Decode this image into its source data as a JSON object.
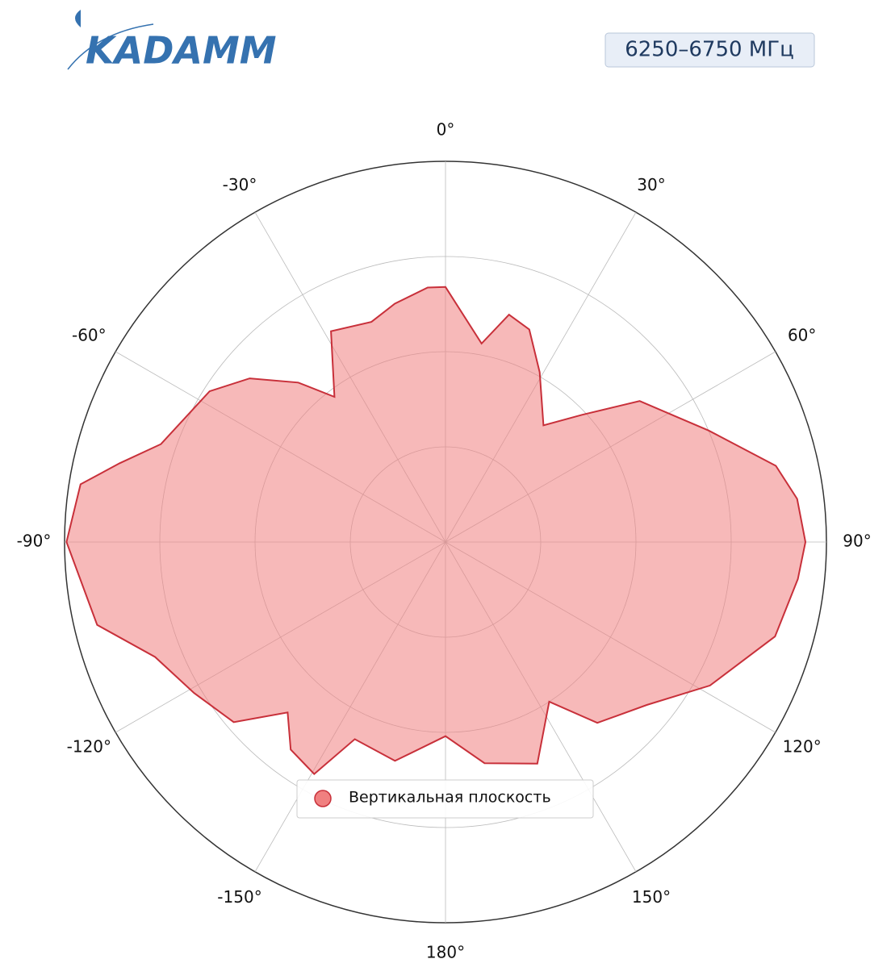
{
  "header": {
    "logo": "KADAMM"
  },
  "chart_data": {
    "type": "polar-area",
    "title": "6250–6750 МГц",
    "x": [
      0,
      10.3,
      15.6,
      21.5,
      29,
      40,
      47,
      54,
      67,
      77,
      83,
      90,
      96,
      106,
      118.5,
      129,
      140,
      147,
      157.5,
      170,
      180,
      193,
      204.7,
      209.5,
      216.7,
      222.8,
      229.6,
      239,
      248.4,
      256.6,
      270,
      279,
      283.6,
      289,
      302.6,
      309.9,
      317.3,
      322.6,
      331.5,
      341.4,
      348,
      356
    ],
    "series": [
      {
        "name": "Вертикальная плоскость",
        "color": "#c8303a",
        "fill": "#f08080",
        "values": [
          0.67,
          0.53,
          0.62,
          0.6,
          0.51,
          0.4,
          0.49,
          0.63,
          0.75,
          0.89,
          0.93,
          0.945,
          0.93,
          0.9,
          0.79,
          0.68,
          0.62,
          0.5,
          0.63,
          0.59,
          0.51,
          0.59,
          0.57,
          0.7,
          0.68,
          0.61,
          0.73,
          0.77,
          0.82,
          0.94,
          0.995,
          0.97,
          0.88,
          0.79,
          0.735,
          0.67,
          0.57,
          0.48,
          0.63,
          0.61,
          0.64,
          0.67
        ]
      }
    ],
    "rlim": [
      0,
      1
    ],
    "rticks": [
      0.25,
      0.5,
      0.75,
      1
    ],
    "xticks": [
      {
        "value": 0,
        "label": "0°"
      },
      {
        "value": 30,
        "label": "30°"
      },
      {
        "value": 60,
        "label": "60°"
      },
      {
        "value": 90,
        "label": "90°"
      },
      {
        "value": 120,
        "label": "120°"
      },
      {
        "value": 150,
        "label": "150°"
      },
      {
        "value": 180,
        "label": "180°"
      },
      {
        "value": -150,
        "label": "-150°"
      },
      {
        "value": -120,
        "label": "-120°"
      },
      {
        "value": -90,
        "label": "-90°"
      },
      {
        "value": -60,
        "label": "-60°"
      },
      {
        "value": -30,
        "label": "-30°"
      }
    ],
    "legend": "bottom",
    "grid": true
  }
}
